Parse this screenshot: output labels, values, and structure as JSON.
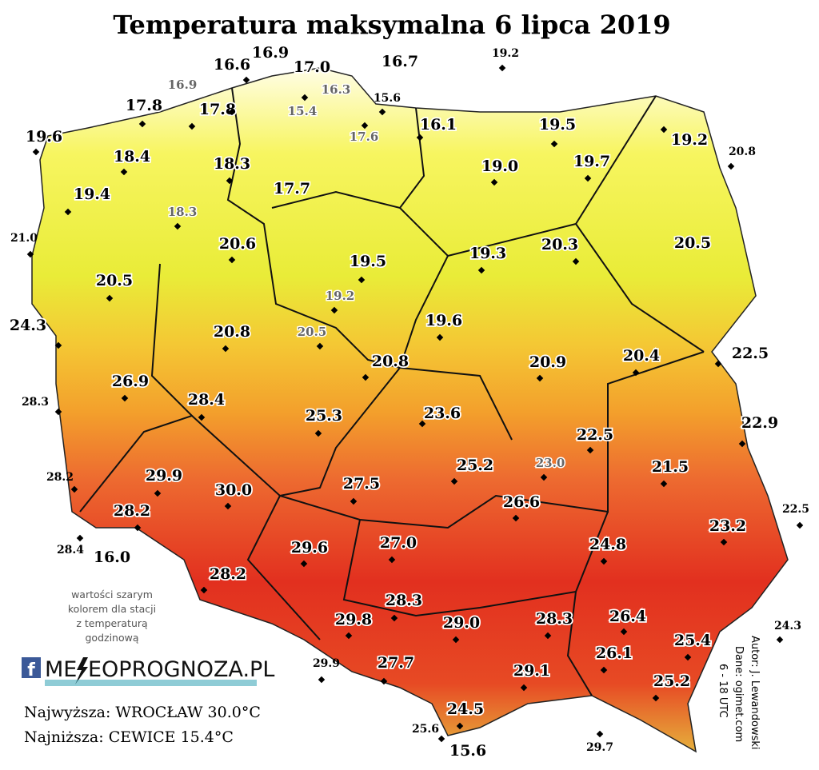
{
  "title": "Temperatura maksymalna 6 lipca 2019",
  "stations": [
    "16.6",
    "16.9",
    "17.0",
    "16.3",
    "15.4",
    "16.7",
    "19.2",
    "16.9",
    "17.8",
    "17.8",
    "15.6",
    "17.6",
    "16.1",
    "19.5",
    "19.2",
    "20.8",
    "19.6",
    "18.4",
    "18.3",
    "19.0",
    "19.7",
    "19.4",
    "17.7",
    "18.3",
    "21.0",
    "20.6",
    "20.5",
    "19.3",
    "20.3",
    "19.5",
    "20.5",
    "19.2",
    "24.3",
    "20.8",
    "20.5",
    "19.6",
    "20.9",
    "20.4",
    "22.5",
    "20.8",
    "26.9",
    "28.3",
    "28.4",
    "25.3",
    "23.6",
    "22.9",
    "22.5",
    "29.9",
    "30.0",
    "28.2",
    "25.2",
    "23.0",
    "27.5",
    "21.5",
    "22.5",
    "28.2",
    "23.2",
    "26.6",
    "28.4",
    "16.0",
    "29.6",
    "27.0",
    "24.8",
    "28.2",
    "26.4",
    "28.3",
    "28.3",
    "29.0",
    "29.8",
    "24.3",
    "25.4",
    "26.1",
    "29.9",
    "27.7",
    "29.1",
    "25.2",
    "24.5",
    "25.6",
    "15.6",
    "29.7"
  ],
  "note": [
    "wartości szarym",
    "kolorem dla stacji",
    "z temperaturą",
    "godzinową"
  ],
  "logo": {
    "icon": "f",
    "left": "ME",
    "right": "EOPROGNOZA.PL"
  },
  "summary": [
    "Najwyższa: WROCŁAW 30.0°C",
    "Najniższa: CEWICE 15.4°C"
  ],
  "credits": [
    "Autor: J. Lewandowski",
    "Dane: ogimet.com",
    "6 - 18 UTC"
  ]
}
